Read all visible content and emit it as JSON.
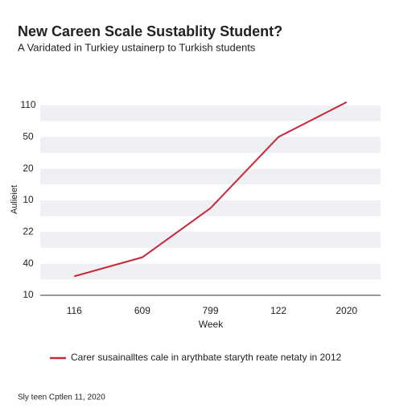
{
  "chart_data": {
    "type": "line",
    "title": "New Careen Scale Sustablity Student?",
    "subtitle": "A Varidated in Turkiey ustainerp to Turkish students",
    "x_label": "Week",
    "y_label": "Aulieiet",
    "categories": [
      "116",
      "609",
      "799",
      "122",
      "2020"
    ],
    "series": [
      {
        "name": "Carer susainalltes cale in arythbate staryth reate netaty in 2012",
        "color": "#c8283a",
        "values": [
          0.6,
          1.2,
          2.75,
          5.0,
          6.1
        ]
      }
    ],
    "ylim": [
      0,
      6.2
    ],
    "yticks": [
      {
        "value": 0,
        "label": "10"
      },
      {
        "value": 1,
        "label": "40"
      },
      {
        "value": 2,
        "label": "22"
      },
      {
        "value": 3,
        "label": "10"
      },
      {
        "value": 4,
        "label": "20"
      },
      {
        "value": 5,
        "label": "50"
      },
      {
        "value": 6,
        "label": "110"
      }
    ],
    "grid": true,
    "legend": "bottom",
    "footer": "Sly teen Cptlen 11, 2020"
  }
}
